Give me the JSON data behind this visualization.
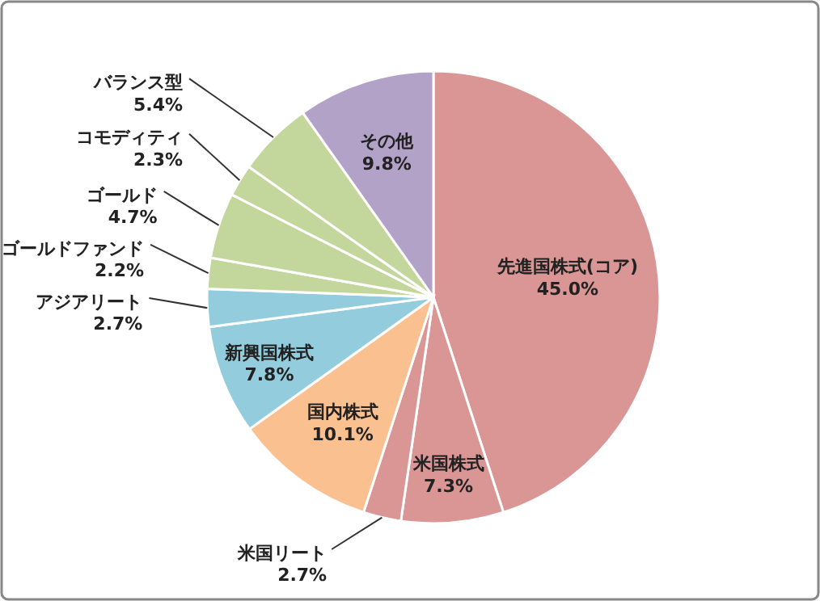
{
  "chart_data": {
    "type": "pie",
    "categories": [
      "先進国株式(コア)",
      "米国株式",
      "米国リート",
      "国内株式",
      "新興国株式",
      "アジアリート",
      "ゴールドファンド",
      "ゴールド",
      "コモディティ",
      "バランス型",
      "その他"
    ],
    "values": [
      45.0,
      7.3,
      2.7,
      10.1,
      7.8,
      2.7,
      2.2,
      4.7,
      2.3,
      5.4,
      9.8
    ],
    "colors": [
      "#d99694",
      "#d99694",
      "#d99694",
      "#fac090",
      "#93cddd",
      "#93cddd",
      "#c3d69b",
      "#c3d69b",
      "#c3d69b",
      "#c3d69b",
      "#b3a2c7"
    ],
    "value_labels": [
      "45.0%",
      "7.3%",
      "2.7%",
      "10.1%",
      "7.8%",
      "2.7%",
      "2.2%",
      "4.7%",
      "2.3%",
      "5.4%",
      "9.8%"
    ]
  }
}
